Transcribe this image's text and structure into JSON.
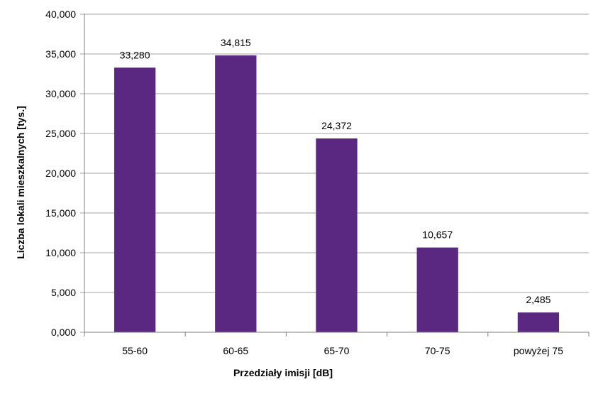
{
  "chart_data": {
    "type": "bar",
    "title": "",
    "xlabel": "Przedziały  imisji [dB]",
    "ylabel": "Liczba lokali mieszkalnych  [tys.]",
    "categories": [
      "55-60",
      "60-65",
      "65-70",
      "70-75",
      "powyżej 75"
    ],
    "values": [
      33.28,
      34.815,
      24.372,
      10.657,
      2.485
    ],
    "data_labels": [
      "33,280",
      "34,815",
      "24,372",
      "10,657",
      "2,485"
    ],
    "ylim": [
      0,
      40
    ],
    "yticks": [
      0,
      5,
      10,
      15,
      20,
      25,
      30,
      35,
      40
    ],
    "ytick_labels": [
      "0,000",
      "5,000",
      "10,000",
      "15,000",
      "20,000",
      "25,000",
      "30,000",
      "35,000",
      "40,000"
    ],
    "grid": true,
    "legend": "none",
    "colors": {
      "bar": "#5B2881",
      "grid": "#A6A6A6",
      "axis": "#7F7F7F"
    }
  }
}
